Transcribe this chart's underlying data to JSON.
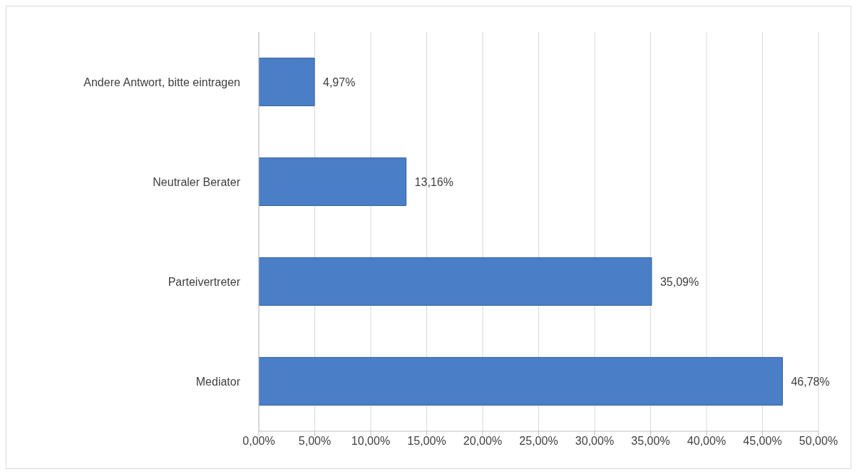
{
  "chart_data": {
    "type": "bar",
    "orientation": "horizontal",
    "categories": [
      "Andere Antwort, bitte eintragen",
      "Neutraler Berater",
      "Parteivertreter",
      "Mediator"
    ],
    "values": [
      4.97,
      13.16,
      35.09,
      46.78
    ],
    "value_labels": [
      "4,97%",
      "13,16%",
      "35,09%",
      "46,78%"
    ],
    "color": "#4a7ec6",
    "xlim": [
      0,
      50
    ],
    "xticks": [
      {
        "value": 0,
        "label": "0,00%"
      },
      {
        "value": 5,
        "label": "5,00%"
      },
      {
        "value": 10,
        "label": "10,00%"
      },
      {
        "value": 15,
        "label": "15,00%"
      },
      {
        "value": 20,
        "label": "20,00%"
      },
      {
        "value": 25,
        "label": "25,00%"
      },
      {
        "value": 30,
        "label": "30,00%"
      },
      {
        "value": 35,
        "label": "35,00%"
      },
      {
        "value": 40,
        "label": "40,00%"
      },
      {
        "value": 45,
        "label": "45,00%"
      },
      {
        "value": 50,
        "label": "50,00%"
      }
    ],
    "grid": "x",
    "legend": false
  }
}
